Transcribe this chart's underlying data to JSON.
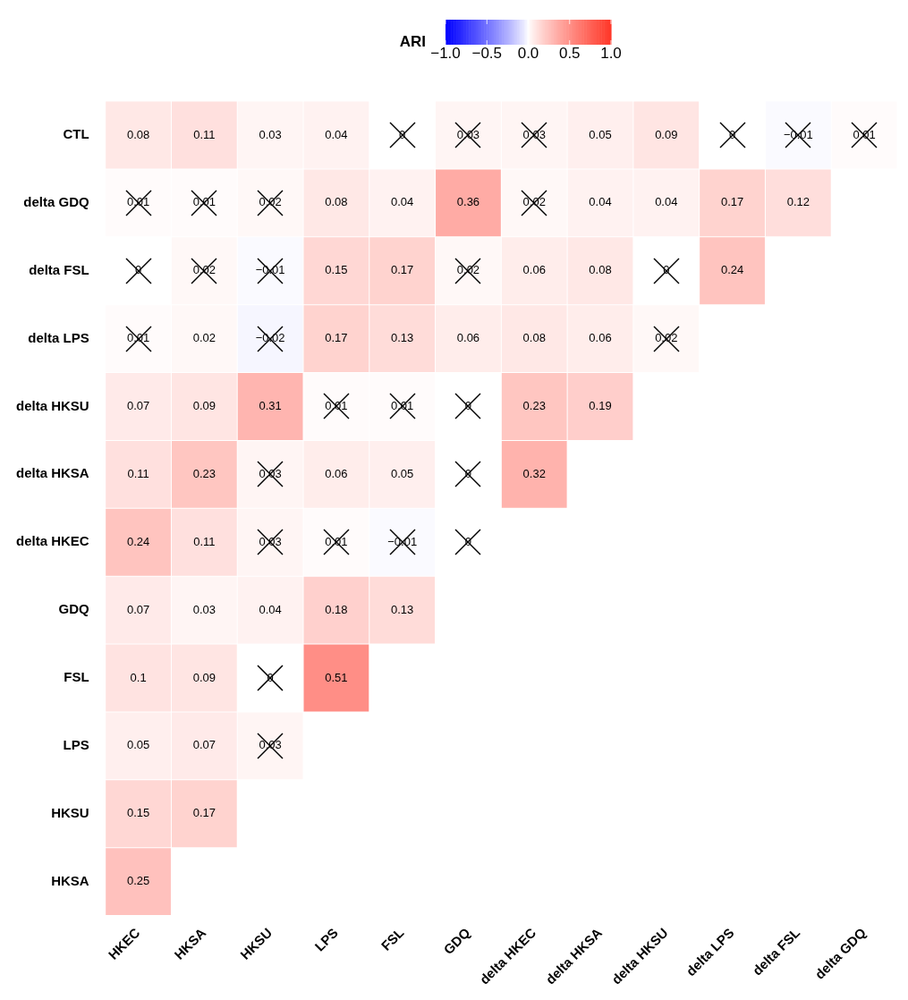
{
  "chart_data": {
    "type": "heatmap",
    "clabel": "ARI",
    "clim": [
      -1,
      1
    ],
    "cticks": [
      {
        "value": -1,
        "label": "−1.0"
      },
      {
        "value": -0.5,
        "label": "−0.5"
      },
      {
        "value": 0,
        "label": "0.0"
      },
      {
        "value": 0.5,
        "label": "0.5"
      },
      {
        "value": 1,
        "label": "1.0"
      }
    ],
    "data_labels": true,
    "categories": [
      "HKEC",
      "HKSA",
      "HKSU",
      "LPS",
      "FSL",
      "GDQ",
      "delta HKEC",
      "delta HKSA",
      "delta HKSU",
      "delta LPS",
      "delta FSL",
      "delta GDQ"
    ],
    "y_categories": [
      "CTL",
      "delta GDQ",
      "delta FSL",
      "delta LPS",
      "delta HKSU",
      "delta HKSA",
      "delta HKEC",
      "GDQ",
      "FSL",
      "LPS",
      "HKSU",
      "HKSA"
    ],
    "cells": [
      [
        0.08,
        0.11,
        0.03,
        0.04,
        0,
        0.03,
        0.03,
        0.05,
        0.09,
        0,
        -0.01,
        0.01
      ],
      [
        0.01,
        0.01,
        0.02,
        0.08,
        0.04,
        0.36,
        0.02,
        0.04,
        0.04,
        0.17,
        0.12,
        null
      ],
      [
        0,
        0.02,
        -0.01,
        0.15,
        0.17,
        0.02,
        0.06,
        0.08,
        0,
        0.24,
        null,
        null
      ],
      [
        0.01,
        0.02,
        -0.02,
        0.17,
        0.13,
        0.06,
        0.08,
        0.06,
        0.02,
        null,
        null,
        null
      ],
      [
        0.07,
        0.09,
        0.31,
        0.01,
        0.01,
        0,
        0.23,
        0.19,
        null,
        null,
        null,
        null
      ],
      [
        0.11,
        0.23,
        0.03,
        0.06,
        0.05,
        0,
        0.32,
        null,
        null,
        null,
        null,
        null
      ],
      [
        0.24,
        0.11,
        0.03,
        0.01,
        -0.01,
        0,
        null,
        null,
        null,
        null,
        null,
        null
      ],
      [
        0.07,
        0.03,
        0.04,
        0.18,
        0.13,
        null,
        null,
        null,
        null,
        null,
        null,
        null
      ],
      [
        0.1,
        0.09,
        0,
        0.51,
        null,
        null,
        null,
        null,
        null,
        null,
        null,
        null
      ],
      [
        0.05,
        0.07,
        0.03,
        null,
        null,
        null,
        null,
        null,
        null,
        null,
        null,
        null
      ],
      [
        0.15,
        0.17,
        null,
        null,
        null,
        null,
        null,
        null,
        null,
        null,
        null,
        null
      ],
      [
        0.25,
        null,
        null,
        null,
        null,
        null,
        null,
        null,
        null,
        null,
        null,
        null
      ]
    ]
  }
}
